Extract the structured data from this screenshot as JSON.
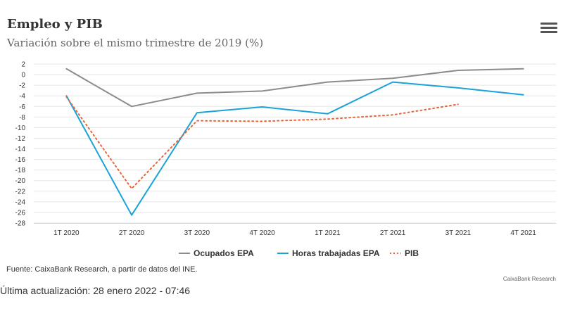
{
  "header": {
    "title": "Empleo y PIB",
    "subtitle": "Variación sobre el mismo trimestre de 2019 (%)",
    "menu_icon": "hamburger-menu-icon"
  },
  "chart_data": {
    "type": "line",
    "title": "Empleo y PIB",
    "subtitle": "Variación sobre el mismo trimestre de 2019 (%)",
    "xlabel": "",
    "ylabel": "",
    "categories": [
      "1T 2020",
      "2T 2020",
      "3T 2020",
      "4T 2020",
      "1T 2021",
      "2T 2021",
      "3T 2021",
      "4T 2021"
    ],
    "ylim": [
      -28,
      2
    ],
    "yticks": [
      2,
      0,
      -2,
      -4,
      -6,
      -8,
      -10,
      -12,
      -14,
      -16,
      -18,
      -20,
      -22,
      -24,
      -26,
      -28
    ],
    "grid": true,
    "legend_position": "bottom",
    "series": [
      {
        "name": "Ocupados EPA",
        "color": "#8c8c8c",
        "style": "solid",
        "values": [
          1.1,
          -6.0,
          -3.5,
          -3.1,
          -1.4,
          -0.7,
          0.8,
          1.1
        ]
      },
      {
        "name": "Horas trabajadas EPA",
        "color": "#1aa3d6",
        "style": "solid",
        "values": [
          -4.0,
          -26.5,
          -7.2,
          -6.1,
          -7.4,
          -1.4,
          -2.5,
          -3.8
        ]
      },
      {
        "name": "PIB",
        "color": "#e8643c",
        "style": "dotted",
        "values": [
          -4.2,
          -21.5,
          -8.7,
          -8.8,
          -8.4,
          -7.6,
          -5.6,
          null
        ]
      }
    ]
  },
  "footer": {
    "source": "Fuente: CaixaBank Research, a partir de datos del INE.",
    "credit": "CaixaBank Research",
    "updated": "Última actualización: 28 enero 2022 - 07:46"
  }
}
